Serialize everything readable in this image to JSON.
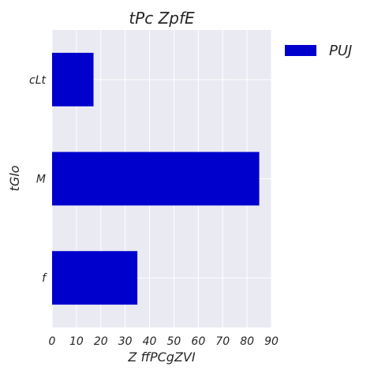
{
  "chart_data": {
    "type": "bar",
    "orientation": "horizontal",
    "title": "tPc ZpfE",
    "xlabel": "Z ffPCgZVI",
    "ylabel": "tGlo",
    "categories": [
      "cLt",
      "M",
      "f"
    ],
    "series": [
      {
        "name": "PUJ",
        "values": [
          17,
          85,
          35
        ]
      }
    ],
    "xlim": [
      0,
      90
    ],
    "xticks": [
      "0",
      "10",
      "20",
      "30",
      "40",
      "50",
      "60",
      "70",
      "80",
      "90"
    ],
    "grid": true,
    "legend_position": "right-top",
    "colors": {
      "bar": "#0000CD",
      "plot_bg": "#EAEAF2",
      "grid": "#FFFFFF"
    }
  }
}
